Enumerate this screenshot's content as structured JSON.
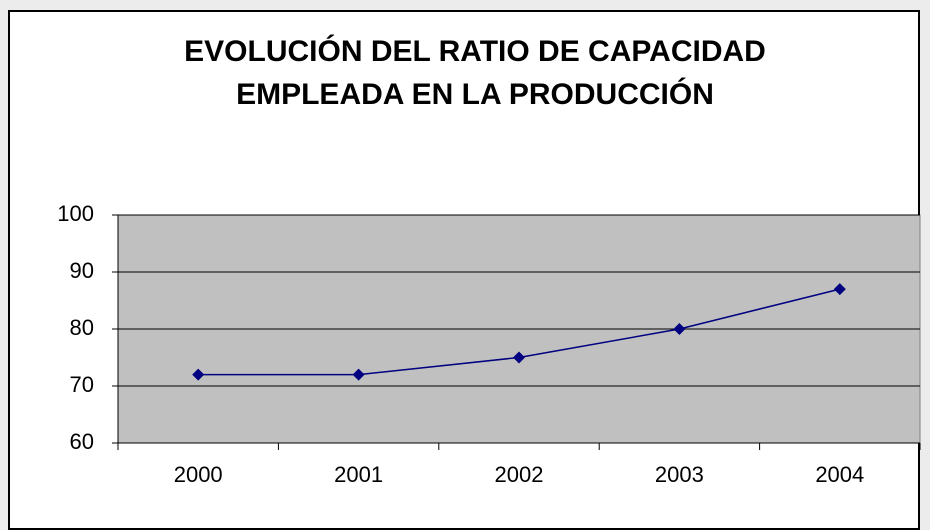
{
  "chart_data": {
    "type": "line",
    "title": "EVOLUCIÓN DEL RATIO DE CAPACIDAD EMPLEADA EN LA PRODUCCIÓN",
    "categories": [
      "2000",
      "2001",
      "2002",
      "2003",
      "2004"
    ],
    "series": [
      {
        "name": null,
        "color": "#000080",
        "values": [
          72,
          72,
          75,
          80,
          87
        ]
      }
    ],
    "ylim": [
      60,
      100
    ],
    "yticks": [
      60,
      70,
      80,
      90,
      100
    ],
    "grid": true,
    "plot_background": "#c0c0c0"
  }
}
